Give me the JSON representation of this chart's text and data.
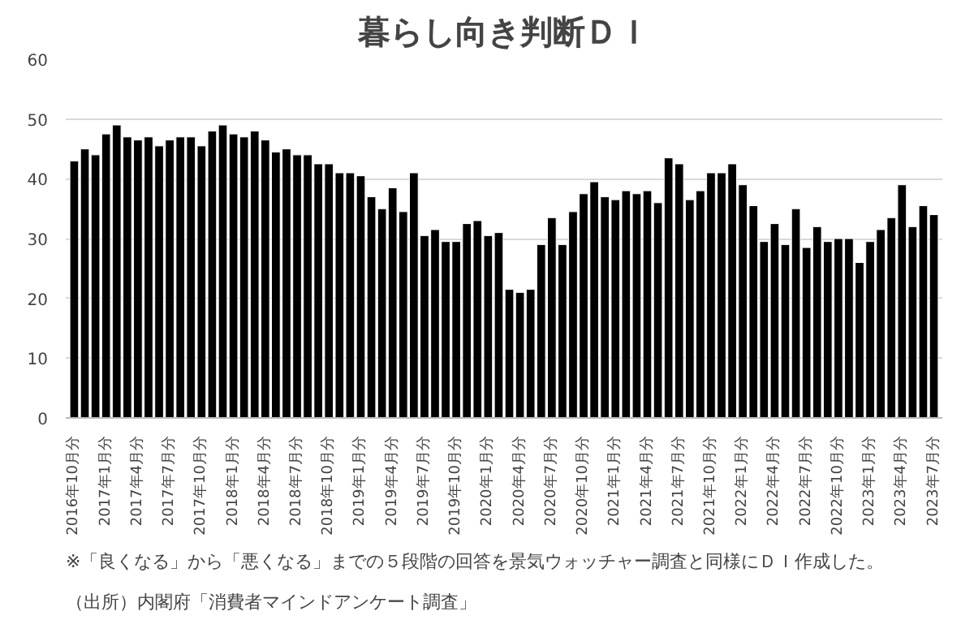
{
  "chart_data": {
    "type": "bar",
    "title": "暮らし向き判断ＤＩ",
    "categories": [
      "2016年10月分",
      null,
      null,
      "2017年1月分",
      null,
      null,
      "2017年4月分",
      null,
      null,
      "2017年7月分",
      null,
      null,
      "2017年10月分",
      null,
      null,
      "2018年1月分",
      null,
      null,
      "2018年4月分",
      null,
      null,
      "2018年7月分",
      null,
      null,
      "2018年10月分",
      null,
      null,
      "2019年1月分",
      null,
      null,
      "2019年4月分",
      null,
      null,
      "2019年7月分",
      null,
      null,
      "2019年10月分",
      null,
      null,
      "2020年1月分",
      null,
      null,
      "2020年4月分",
      null,
      null,
      "2020年7月分",
      null,
      null,
      "2020年10月分",
      null,
      null,
      "2021年1月分",
      null,
      null,
      "2021年4月分",
      null,
      null,
      "2021年7月分",
      null,
      null,
      "2021年10月分",
      null,
      null,
      "2022年1月分",
      null,
      null,
      "2022年4月分",
      null,
      null,
      "2022年7月分",
      null,
      null,
      "2022年10月分",
      null,
      null,
      "2023年1月分",
      null,
      null,
      "2023年4月分",
      null,
      null,
      "2023年7月分"
    ],
    "values": [
      43,
      45,
      44,
      47.5,
      49,
      47,
      46.5,
      47,
      45.5,
      46.5,
      47,
      47,
      45.5,
      48,
      49,
      47.5,
      47,
      48,
      46.5,
      44.5,
      45,
      44,
      44,
      42.5,
      42.5,
      41,
      41,
      40.5,
      37,
      35,
      38.5,
      34.5,
      41,
      30.5,
      31.5,
      29.5,
      29.5,
      32.5,
      33,
      30.5,
      31,
      21.5,
      21,
      21.5,
      29,
      33.5,
      29,
      34.5,
      37.5,
      39.5,
      37,
      36.5,
      38,
      37.5,
      38,
      36,
      43.5,
      42.5,
      36.5,
      38,
      41,
      41,
      42.5,
      39,
      35.5,
      29.5,
      32.5,
      29,
      35,
      28.5,
      32,
      29.5,
      30,
      30,
      26,
      29.5,
      31.5,
      33.5,
      39,
      32,
      35.5,
      34
    ],
    "color": "#000000",
    "ylim": [
      0,
      60
    ],
    "yticks": [
      0,
      10,
      20,
      30,
      40,
      50,
      60
    ],
    "grid": "y",
    "annotations": [
      "※「良くなる」から「悪くなる」までの５段階の回答を景気ウォッチャー調査と同様にＤＩ作成した。",
      "（出所）内閣府「消費者マインドアンケート調査」"
    ]
  }
}
